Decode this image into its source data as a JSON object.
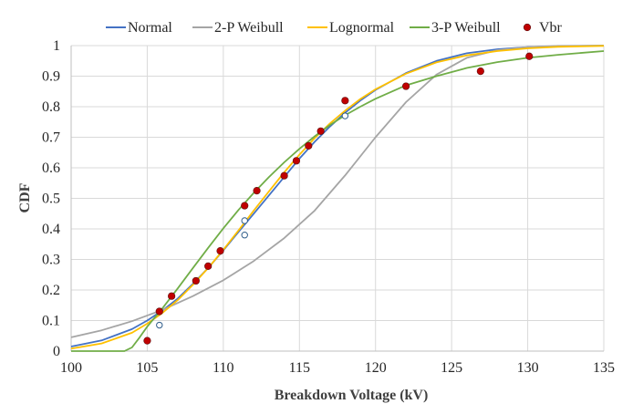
{
  "chart_data": {
    "type": "line",
    "title": "",
    "xlabel": "Breakdown Voltage (kV)",
    "ylabel": "CDF",
    "xlim": [
      100,
      135
    ],
    "ylim": [
      0,
      1
    ],
    "x_ticks": [
      "100",
      "105",
      "110",
      "115",
      "120",
      "125",
      "130",
      "135"
    ],
    "y_ticks": [
      "0",
      "0.1",
      "0.2",
      "0.3",
      "0.4",
      "0.5",
      "0.6",
      "0.7",
      "0.8",
      "0.9",
      "1"
    ],
    "grid": true,
    "legend_position": "top",
    "series": [
      {
        "name": "Normal",
        "color": "#4472c4",
        "kind": "line",
        "x": [
          100,
          102,
          104,
          105,
          106,
          107,
          108,
          109,
          110,
          111,
          112,
          113,
          114,
          115,
          116,
          117,
          118,
          119,
          120,
          122,
          124,
          126,
          128,
          130,
          132,
          135
        ],
        "y": [
          0.015,
          0.035,
          0.072,
          0.1,
          0.133,
          0.172,
          0.22,
          0.272,
          0.33,
          0.39,
          0.45,
          0.51,
          0.57,
          0.63,
          0.685,
          0.735,
          0.78,
          0.82,
          0.855,
          0.91,
          0.95,
          0.975,
          0.988,
          0.995,
          0.998,
          1.0
        ]
      },
      {
        "name": "2-P Weibull",
        "color": "#a5a5a5",
        "kind": "line",
        "x": [
          100,
          102,
          104,
          106,
          108,
          110,
          112,
          114,
          116,
          118,
          120,
          122,
          124,
          126,
          128,
          130,
          132,
          135
        ],
        "y": [
          0.045,
          0.068,
          0.098,
          0.135,
          0.18,
          0.232,
          0.295,
          0.37,
          0.46,
          0.575,
          0.7,
          0.815,
          0.905,
          0.96,
          0.985,
          0.995,
          0.999,
          1.0
        ]
      },
      {
        "name": "Lognormal",
        "color": "#ffc000",
        "kind": "line",
        "x": [
          100,
          102,
          104,
          105,
          106,
          107,
          108,
          109,
          110,
          111,
          112,
          113,
          114,
          115,
          116,
          117,
          118,
          119,
          120,
          122,
          124,
          126,
          128,
          130,
          132,
          135
        ],
        "y": [
          0.008,
          0.025,
          0.06,
          0.09,
          0.125,
          0.167,
          0.217,
          0.272,
          0.332,
          0.395,
          0.46,
          0.523,
          0.585,
          0.643,
          0.697,
          0.745,
          0.787,
          0.825,
          0.857,
          0.908,
          0.945,
          0.968,
          0.982,
          0.991,
          0.996,
          0.999
        ]
      },
      {
        "name": "3-P Weibull",
        "color": "#70ad47",
        "kind": "line",
        "x": [
          100,
          103.5,
          104,
          104.5,
          105,
          106,
          107,
          108,
          109,
          110,
          111,
          112,
          113,
          114,
          115,
          116,
          117,
          118,
          119,
          120,
          122,
          124,
          126,
          128,
          130,
          132,
          135
        ],
        "y": [
          0.0,
          0.0,
          0.012,
          0.045,
          0.08,
          0.14,
          0.205,
          0.272,
          0.338,
          0.402,
          0.462,
          0.518,
          0.57,
          0.618,
          0.662,
          0.703,
          0.74,
          0.772,
          0.8,
          0.826,
          0.87,
          0.9,
          0.927,
          0.946,
          0.96,
          0.97,
          0.982
        ]
      },
      {
        "name": "Vbr",
        "color": "#c00000",
        "kind": "scatter",
        "x": [
          105.0,
          105.8,
          106.6,
          108.2,
          109.0,
          109.8,
          111.4,
          112.2,
          114.0,
          114.8,
          115.6,
          116.4,
          118.0,
          122.0,
          126.9,
          130.1
        ],
        "y": [
          0.034,
          0.13,
          0.18,
          0.23,
          0.278,
          0.328,
          0.476,
          0.525,
          0.574,
          0.623,
          0.672,
          0.72,
          0.82,
          0.867,
          0.916,
          0.965
        ]
      },
      {
        "name": "",
        "color": "#2e5c8a",
        "kind": "hollow",
        "x": [
          105.8,
          111.4,
          111.4,
          118.0
        ],
        "y": [
          0.085,
          0.38,
          0.427,
          0.77
        ]
      }
    ]
  }
}
